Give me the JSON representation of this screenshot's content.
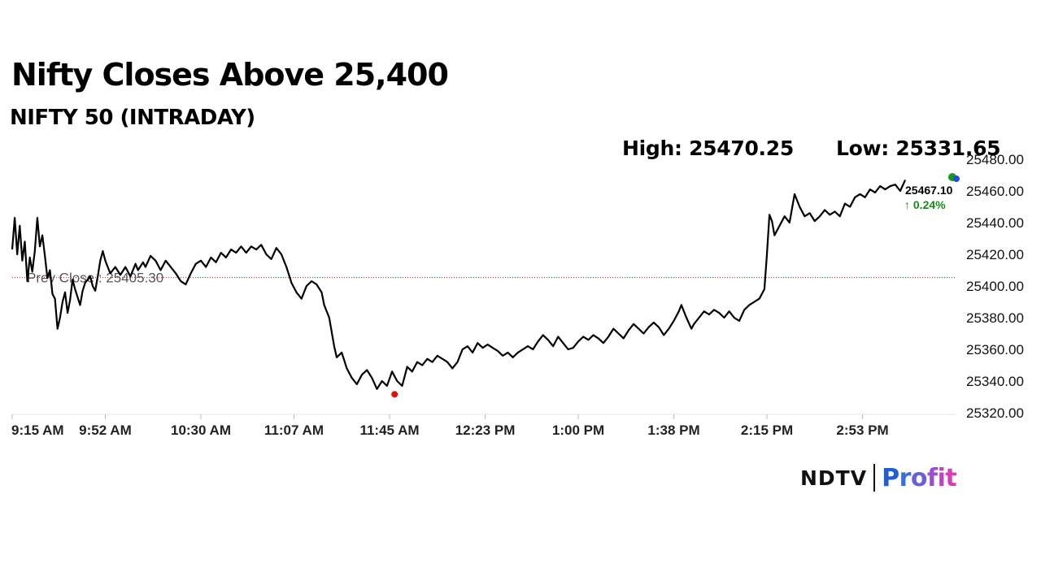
{
  "title": "Nifty Closes Above 25,400",
  "subtitle": "NIFTY 50 (INTRADAY)",
  "stats": {
    "high_label": "High: 25470.25",
    "low_label": "Low: 25331.65"
  },
  "brand": {
    "ndtv": "NDTV",
    "profit": "Profit",
    "profit_colors": [
      "#1f5fd1",
      "#3b6fd8",
      "#6a5fd6",
      "#9b4fd0",
      "#c043c6",
      "#d83db8"
    ]
  },
  "chart_data": {
    "type": "line",
    "title": "",
    "xlabel": "",
    "ylabel": "",
    "ylim": [
      25320,
      25480
    ],
    "y_ticks": [
      25320,
      25340,
      25360,
      25380,
      25400,
      25420,
      25440,
      25460,
      25480
    ],
    "y_tick_labels": [
      "25320.00",
      "25340.00",
      "25360.00",
      "25380.00",
      "25400.00",
      "25420.00",
      "25440.00",
      "25460.00",
      "25480.00"
    ],
    "x_range_minutes": [
      555,
      930
    ],
    "x_ticks": [
      {
        "minutes": 555,
        "label": "9:15 AM"
      },
      {
        "minutes": 592,
        "label": "9:52 AM"
      },
      {
        "minutes": 630,
        "label": "10:30 AM"
      },
      {
        "minutes": 667,
        "label": "11:07 AM"
      },
      {
        "minutes": 705,
        "label": "11:45 AM"
      },
      {
        "minutes": 743,
        "label": "12:23 PM"
      },
      {
        "minutes": 780,
        "label": "1:00 PM"
      },
      {
        "minutes": 818,
        "label": "1:38 PM"
      },
      {
        "minutes": 855,
        "label": "2:15 PM"
      },
      {
        "minutes": 893,
        "label": "2:53 PM"
      }
    ],
    "prev_close": 25405.3,
    "prev_close_label": "Prev Close : 25405.30",
    "last_value_label": "25467.10",
    "change_label": "↑ 0.24%",
    "low_marker": {
      "time": "11:47 AM",
      "value": 25331.65
    },
    "series": [
      {
        "color": "#000000",
        "points": [
          [
            "9:15 AM",
            25423
          ],
          [
            "9:16 AM",
            25443
          ],
          [
            "9:17 AM",
            25420
          ],
          [
            "9:18 AM",
            25438
          ],
          [
            "9:19 AM",
            25416
          ],
          [
            "9:20 AM",
            25428
          ],
          [
            "9:21 AM",
            25403
          ],
          [
            "9:22 AM",
            25418
          ],
          [
            "9:23 AM",
            25409
          ],
          [
            "9:24 AM",
            25422
          ],
          [
            "9:25 AM",
            25443
          ],
          [
            "9:26 AM",
            25425
          ],
          [
            "9:27 AM",
            25432
          ],
          [
            "9:28 AM",
            25419
          ],
          [
            "9:29 AM",
            25405
          ],
          [
            "9:30 AM",
            25410
          ],
          [
            "9:31 AM",
            25395
          ],
          [
            "9:32 AM",
            25392
          ],
          [
            "9:33 AM",
            25373
          ],
          [
            "9:34 AM",
            25380
          ],
          [
            "9:35 AM",
            25390
          ],
          [
            "9:36 AM",
            25396
          ],
          [
            "9:37 AM",
            25383
          ],
          [
            "9:38 AM",
            25391
          ],
          [
            "9:39 AM",
            25404
          ],
          [
            "9:40 AM",
            25398
          ],
          [
            "9:42 AM",
            25388
          ],
          [
            "9:43 AM",
            25397
          ],
          [
            "9:44 AM",
            25402
          ],
          [
            "9:46 AM",
            25406
          ],
          [
            "9:47 AM",
            25400
          ],
          [
            "9:48 AM",
            25397
          ],
          [
            "9:49 AM",
            25406
          ],
          [
            "9:50 AM",
            25416
          ],
          [
            "9:51 AM",
            25422
          ],
          [
            "9:52 AM",
            25416
          ],
          [
            "9:53 AM",
            25412
          ],
          [
            "9:54 AM",
            25408
          ],
          [
            "9:56 AM",
            25412
          ],
          [
            "9:58 AM",
            25407
          ],
          [
            "10:00 AM",
            25412
          ],
          [
            "10:02 AM",
            25406
          ],
          [
            "10:04 AM",
            25414
          ],
          [
            "10:05 AM",
            25410
          ],
          [
            "10:07 AM",
            25415
          ],
          [
            "10:08 AM",
            25412
          ],
          [
            "10:10 AM",
            25419
          ],
          [
            "10:12 AM",
            25416
          ],
          [
            "10:14 AM",
            25410
          ],
          [
            "10:16 AM",
            25416
          ],
          [
            "10:18 AM",
            25412
          ],
          [
            "10:20 AM",
            25408
          ],
          [
            "10:22 AM",
            25403
          ],
          [
            "10:24 AM",
            25401
          ],
          [
            "10:26 AM",
            25408
          ],
          [
            "10:28 AM",
            25414
          ],
          [
            "10:30 AM",
            25416
          ],
          [
            "10:32 AM",
            25412
          ],
          [
            "10:34 AM",
            25418
          ],
          [
            "10:36 AM",
            25415
          ],
          [
            "10:38 AM",
            25421
          ],
          [
            "10:40 AM",
            25418
          ],
          [
            "10:42 AM",
            25423
          ],
          [
            "10:44 AM",
            25421
          ],
          [
            "10:46 AM",
            25425
          ],
          [
            "10:48 AM",
            25421
          ],
          [
            "10:50 AM",
            25425
          ],
          [
            "10:52 AM",
            25423
          ],
          [
            "10:54 AM",
            25426
          ],
          [
            "10:56 AM",
            25420
          ],
          [
            "10:58 AM",
            25417
          ],
          [
            "11:00 AM",
            25424
          ],
          [
            "11:02 AM",
            25420
          ],
          [
            "11:04 AM",
            25412
          ],
          [
            "11:06 AM",
            25402
          ],
          [
            "11:08 AM",
            25396
          ],
          [
            "11:10 AM",
            25392
          ],
          [
            "11:12 AM",
            25400
          ],
          [
            "11:14 AM",
            25403
          ],
          [
            "11:16 AM",
            25401
          ],
          [
            "11:18 AM",
            25396
          ],
          [
            "11:19 AM",
            25388
          ],
          [
            "11:21 AM",
            25380
          ],
          [
            "11:23 AM",
            25362
          ],
          [
            "11:24 AM",
            25355
          ],
          [
            "11:26 AM",
            25358
          ],
          [
            "11:28 AM",
            25348
          ],
          [
            "11:30 AM",
            25342
          ],
          [
            "11:32 AM",
            25338
          ],
          [
            "11:34 AM",
            25344
          ],
          [
            "11:36 AM",
            25347
          ],
          [
            "11:38 AM",
            25342
          ],
          [
            "11:40 AM",
            25335
          ],
          [
            "11:42 AM",
            25340
          ],
          [
            "11:44 AM",
            25337
          ],
          [
            "11:46 AM",
            25346
          ],
          [
            "11:48 AM",
            25340
          ],
          [
            "11:50 AM",
            25337
          ],
          [
            "11:52 AM",
            25349
          ],
          [
            "11:54 AM",
            25346
          ],
          [
            "11:56 AM",
            25352
          ],
          [
            "11:58 AM",
            25350
          ],
          [
            "12:00 PM",
            25354
          ],
          [
            "12:02 PM",
            25352
          ],
          [
            "12:04 PM",
            25356
          ],
          [
            "12:06 PM",
            25354
          ],
          [
            "12:08 PM",
            25352
          ],
          [
            "12:10 PM",
            25348
          ],
          [
            "12:12 PM",
            25352
          ],
          [
            "12:14 PM",
            25360
          ],
          [
            "12:16 PM",
            25362
          ],
          [
            "12:18 PM",
            25358
          ],
          [
            "12:20 PM",
            25364
          ],
          [
            "12:22 PM",
            25361
          ],
          [
            "12:24 PM",
            25363
          ],
          [
            "12:26 PM",
            25361
          ],
          [
            "12:28 PM",
            25359
          ],
          [
            "12:30 PM",
            25356
          ],
          [
            "12:32 PM",
            25358
          ],
          [
            "12:34 PM",
            25355
          ],
          [
            "12:36 PM",
            25358
          ],
          [
            "12:38 PM",
            25360
          ],
          [
            "12:40 PM",
            25362
          ],
          [
            "12:42 PM",
            25360
          ],
          [
            "12:44 PM",
            25365
          ],
          [
            "12:46 PM",
            25369
          ],
          [
            "12:48 PM",
            25366
          ],
          [
            "12:50 PM",
            25362
          ],
          [
            "12:52 PM",
            25368
          ],
          [
            "12:54 PM",
            25364
          ],
          [
            "12:56 PM",
            25360
          ],
          [
            "12:58 PM",
            25361
          ],
          [
            "1:00 PM",
            25365
          ],
          [
            "1:02 PM",
            25368
          ],
          [
            "1:04 PM",
            25366
          ],
          [
            "1:06 PM",
            25369
          ],
          [
            "1:08 PM",
            25367
          ],
          [
            "1:10 PM",
            25364
          ],
          [
            "1:12 PM",
            25368
          ],
          [
            "1:14 PM",
            25373
          ],
          [
            "1:16 PM",
            25370
          ],
          [
            "1:18 PM",
            25367
          ],
          [
            "1:20 PM",
            25372
          ],
          [
            "1:22 PM",
            25376
          ],
          [
            "1:24 PM",
            25373
          ],
          [
            "1:26 PM",
            25370
          ],
          [
            "1:28 PM",
            25374
          ],
          [
            "1:30 PM",
            25377
          ],
          [
            "1:32 PM",
            25374
          ],
          [
            "1:34 PM",
            25369
          ],
          [
            "1:36 PM",
            25373
          ],
          [
            "1:38 PM",
            25378
          ],
          [
            "1:40 PM",
            25384
          ],
          [
            "1:41 PM",
            25388
          ],
          [
            "1:43 PM",
            25380
          ],
          [
            "1:45 PM",
            25373
          ],
          [
            "1:46 PM",
            25376
          ],
          [
            "1:48 PM",
            25380
          ],
          [
            "1:50 PM",
            25384
          ],
          [
            "1:52 PM",
            25382
          ],
          [
            "1:54 PM",
            25385
          ],
          [
            "1:56 PM",
            25383
          ],
          [
            "1:58 PM",
            25380
          ],
          [
            "2:00 PM",
            25384
          ],
          [
            "2:02 PM",
            25380
          ],
          [
            "2:04 PM",
            25378
          ],
          [
            "2:06 PM",
            25385
          ],
          [
            "2:08 PM",
            25388
          ],
          [
            "2:10 PM",
            25390
          ],
          [
            "2:12 PM",
            25392
          ],
          [
            "2:14 PM",
            25398
          ],
          [
            "2:15 PM",
            25420
          ],
          [
            "2:16 PM",
            25445
          ],
          [
            "2:17 PM",
            25441
          ],
          [
            "2:18 PM",
            25432
          ],
          [
            "2:20 PM",
            25438
          ],
          [
            "2:22 PM",
            25444
          ],
          [
            "2:24 PM",
            25440
          ],
          [
            "2:26 PM",
            25458
          ],
          [
            "2:28 PM",
            25450
          ],
          [
            "2:30 PM",
            25444
          ],
          [
            "2:32 PM",
            25446
          ],
          [
            "2:34 PM",
            25441
          ],
          [
            "2:36 PM",
            25444
          ],
          [
            "2:38 PM",
            25448
          ],
          [
            "2:40 PM",
            25445
          ],
          [
            "2:42 PM",
            25447
          ],
          [
            "2:44 PM",
            25444
          ],
          [
            "2:46 PM",
            25452
          ],
          [
            "2:48 PM",
            25450
          ],
          [
            "2:50 PM",
            25456
          ],
          [
            "2:52 PM",
            25458
          ],
          [
            "2:54 PM",
            25456
          ],
          [
            "2:56 PM",
            25461
          ],
          [
            "2:58 PM",
            25459
          ],
          [
            "3:00 PM",
            25463
          ],
          [
            "3:02 PM",
            25461
          ],
          [
            "3:04 PM",
            25463
          ],
          [
            "3:06 PM",
            25464
          ],
          [
            "3:08 PM",
            25460
          ],
          [
            "3:10 PM",
            25467
          ]
        ]
      }
    ]
  }
}
